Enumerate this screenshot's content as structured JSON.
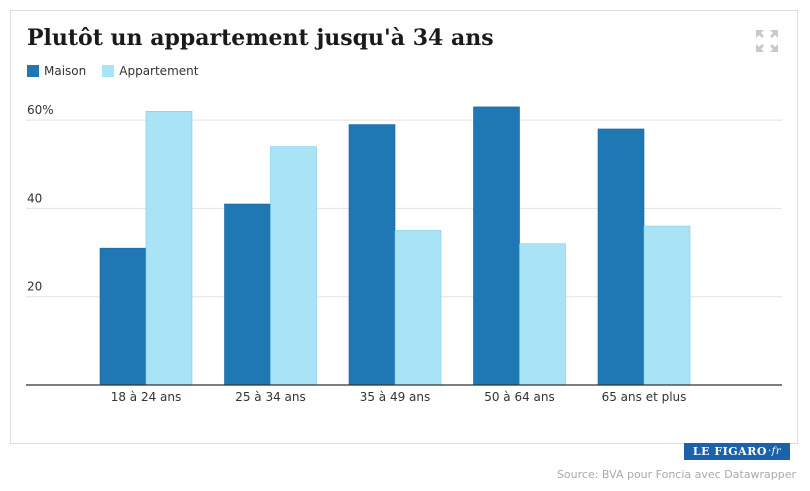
{
  "chart_data": {
    "type": "bar",
    "title": "Plutôt un appartement jusqu'à 34 ans",
    "categories": [
      "18 à 24 ans",
      "25 à 34 ans",
      "35 à 49 ans",
      "50 à 64 ans",
      "65 ans et plus"
    ],
    "series": [
      {
        "name": "Maison",
        "color": "#1f77b4",
        "values": [
          31,
          41,
          59,
          63,
          58
        ]
      },
      {
        "name": "Appartement",
        "color": "#a8e4f6",
        "values": [
          62,
          54,
          35,
          32,
          36
        ]
      }
    ],
    "yticks": [
      {
        "value": 20,
        "label": "20"
      },
      {
        "value": 40,
        "label": "40"
      },
      {
        "value": 60,
        "label": "60%"
      }
    ],
    "ylim": [
      0,
      70
    ],
    "grid": true,
    "legend_position": "top-left"
  },
  "icons": {
    "expand": "expand-icon"
  },
  "logo": {
    "name": "LE FIGARO",
    "suffix": "·fr"
  },
  "source": "Source: BVA pour Foncia avec Datawrapper"
}
